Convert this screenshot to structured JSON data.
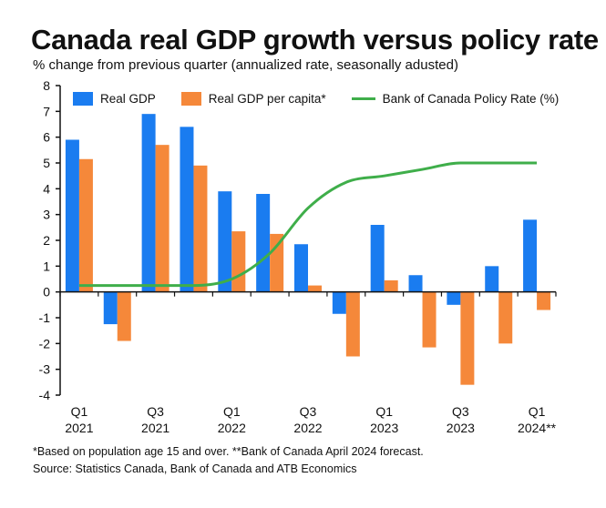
{
  "header": {
    "title": "Canada real GDP growth versus policy rate",
    "subtitle": "% change from previous quarter (annualized rate, seasonally adusted)"
  },
  "footnotes": {
    "note": "*Based on population age 15 and over. **Bank of Canada April 2024 forecast.",
    "source": "Source: Statistics Canada, Bank of Canada and ATB Economics"
  },
  "legend": {
    "real_gdp": "Real GDP",
    "per_capita": "Real GDP per capita*",
    "policy_rate": "Bank of Canada Policy Rate (%)"
  },
  "colors": {
    "real_gdp": "#1a7cf0",
    "per_capita": "#f5883a",
    "policy_rate": "#3fae4a"
  },
  "chart_data": {
    "type": "bar",
    "categories": [
      "Q1 2021",
      "Q2 2021",
      "Q3 2021",
      "Q4 2021",
      "Q1 2022",
      "Q2 2022",
      "Q3 2022",
      "Q4 2022",
      "Q1 2023",
      "Q2 2023",
      "Q3 2023",
      "Q4 2023",
      "Q1 2024**"
    ],
    "tick_labels": [
      {
        "index": 0,
        "line1": "Q1",
        "line2": "2021"
      },
      {
        "index": 2,
        "line1": "Q3",
        "line2": "2021"
      },
      {
        "index": 4,
        "line1": "Q1",
        "line2": "2022"
      },
      {
        "index": 6,
        "line1": "Q3",
        "line2": "2022"
      },
      {
        "index": 8,
        "line1": "Q1",
        "line2": "2023"
      },
      {
        "index": 10,
        "line1": "Q3",
        "line2": "2023"
      },
      {
        "index": 12,
        "line1": "Q1",
        "line2": "2024**"
      }
    ],
    "series": [
      {
        "name": "Real GDP",
        "type": "bar",
        "values": [
          5.9,
          -1.25,
          6.9,
          6.4,
          3.9,
          3.8,
          1.85,
          -0.85,
          2.6,
          0.65,
          -0.5,
          1.0,
          2.8
        ]
      },
      {
        "name": "Real GDP per capita*",
        "type": "bar",
        "values": [
          5.15,
          -1.9,
          5.7,
          4.9,
          2.35,
          2.25,
          0.25,
          -2.5,
          0.45,
          -2.15,
          -3.6,
          -2.0,
          -0.7
        ]
      },
      {
        "name": "Bank of Canada Policy Rate (%)",
        "type": "line",
        "values": [
          0.25,
          0.25,
          0.25,
          0.25,
          0.5,
          1.5,
          3.25,
          4.25,
          4.5,
          4.75,
          5.0,
          5.0,
          5.0
        ]
      }
    ],
    "ylim": [
      -4,
      8
    ],
    "yticks": [
      -4,
      -3,
      -2,
      -1,
      0,
      1,
      2,
      3,
      4,
      5,
      6,
      7,
      8
    ],
    "grid": false,
    "legend_position": "top"
  }
}
